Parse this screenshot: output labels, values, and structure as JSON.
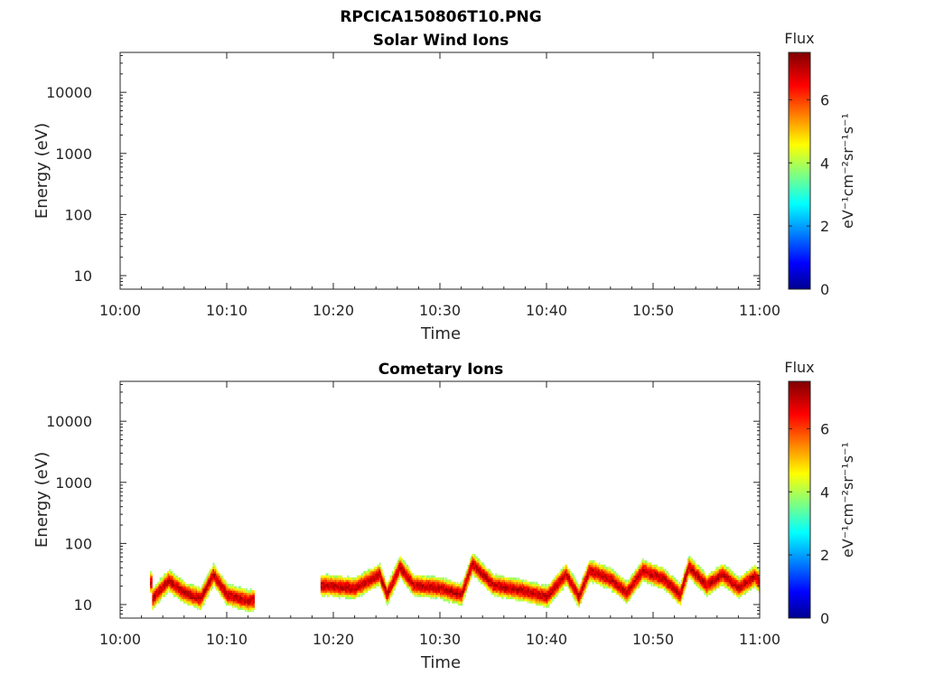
{
  "figure": {
    "title": "RPCICA150806T10.PNG"
  },
  "chart_data": [
    {
      "type": "heatmap",
      "title": "Solar Wind Ions",
      "xlabel": "Time",
      "ylabel": "Energy (eV)",
      "x_ticks": [
        "10:00",
        "10:10",
        "10:20",
        "10:30",
        "10:40",
        "10:50",
        "11:00"
      ],
      "xlim": [
        "10:00",
        "11:00"
      ],
      "y_scale": "log",
      "y_ticks": [
        "10",
        "100",
        "1000",
        "10000"
      ],
      "ylim": [
        6,
        45000
      ],
      "colorbar": {
        "title": "Flux",
        "label": "eV⁻¹cm⁻²sr⁻¹s⁻¹",
        "ticks": [
          "0",
          "2",
          "4",
          "6"
        ],
        "range": [
          0,
          7.5
        ],
        "colormap": "jet"
      },
      "data": []
    },
    {
      "type": "heatmap",
      "title": "Cometary Ions",
      "xlabel": "Time",
      "ylabel": "Energy (eV)",
      "x_ticks": [
        "10:00",
        "10:10",
        "10:20",
        "10:30",
        "10:40",
        "10:50",
        "11:00"
      ],
      "xlim": [
        "10:00",
        "11:00"
      ],
      "y_scale": "log",
      "y_ticks": [
        "10",
        "100",
        "1000",
        "10000"
      ],
      "ylim": [
        6,
        45000
      ],
      "colorbar": {
        "title": "Flux",
        "label": "eV⁻¹cm⁻²sr⁻¹s⁻¹",
        "ticks": [
          "0",
          "2",
          "4",
          "6"
        ],
        "range": [
          0,
          7.5
        ],
        "colormap": "jet"
      },
      "segments": [
        {
          "start": "10:02.8",
          "end": "10:12.5"
        },
        {
          "start": "10:18.8",
          "end": "11:00.0"
        }
      ],
      "peak_energy_trace": [
        {
          "t": "10:03.0",
          "e_ev": 12
        },
        {
          "t": "10:04.5",
          "e_ev": 24
        },
        {
          "t": "10:06.0",
          "e_ev": 15
        },
        {
          "t": "10:07.5",
          "e_ev": 12
        },
        {
          "t": "10:08.7",
          "e_ev": 30
        },
        {
          "t": "10:10.0",
          "e_ev": 14
        },
        {
          "t": "10:12.0",
          "e_ev": 11
        },
        {
          "t": "10:19.0",
          "e_ev": 20
        },
        {
          "t": "10:22.0",
          "e_ev": 18
        },
        {
          "t": "10:24.3",
          "e_ev": 30
        },
        {
          "t": "10:25.0",
          "e_ev": 14
        },
        {
          "t": "10:26.2",
          "e_ev": 40
        },
        {
          "t": "10:27.5",
          "e_ev": 20
        },
        {
          "t": "10:30.0",
          "e_ev": 18
        },
        {
          "t": "10:32.0",
          "e_ev": 14
        },
        {
          "t": "10:33.0",
          "e_ev": 45
        },
        {
          "t": "10:35.0",
          "e_ev": 20
        },
        {
          "t": "10:38.0",
          "e_ev": 16
        },
        {
          "t": "10:40.0",
          "e_ev": 13
        },
        {
          "t": "10:41.8",
          "e_ev": 30
        },
        {
          "t": "10:43.0",
          "e_ev": 13
        },
        {
          "t": "10:44.0",
          "e_ev": 35
        },
        {
          "t": "10:46.0",
          "e_ev": 25
        },
        {
          "t": "10:47.5",
          "e_ev": 15
        },
        {
          "t": "10:49.0",
          "e_ev": 35
        },
        {
          "t": "10:51.0",
          "e_ev": 25
        },
        {
          "t": "10:52.5",
          "e_ev": 14
        },
        {
          "t": "10:53.3",
          "e_ev": 40
        },
        {
          "t": "10:55.0",
          "e_ev": 20
        },
        {
          "t": "10:56.5",
          "e_ev": 30
        },
        {
          "t": "10:58.0",
          "e_ev": 18
        },
        {
          "t": "10:59.5",
          "e_ev": 28
        },
        {
          "t": "11:00.0",
          "e_ev": 22
        }
      ],
      "peak_flux": 7.0
    }
  ]
}
